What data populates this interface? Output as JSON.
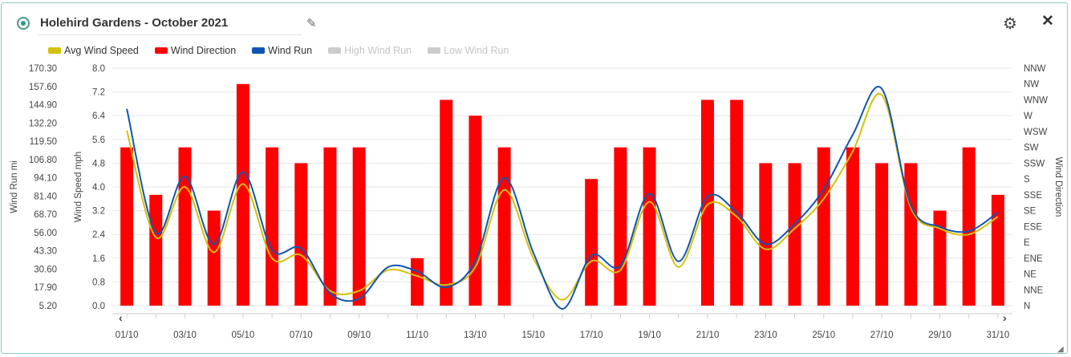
{
  "header": {
    "title": "Holehird Gardens - October 2021",
    "edit_icon": "pencil-icon",
    "settings_icon": "gear-icon",
    "close_icon": "close-icon"
  },
  "legend": [
    {
      "label": "Avg Wind Speed",
      "color": "#d4c10c",
      "active": true
    },
    {
      "label": "Wind Direction",
      "color": "#ff0000",
      "active": true
    },
    {
      "label": "Wind Run",
      "color": "#1155b0",
      "active": true
    },
    {
      "label": "High Wind Run",
      "color": "#cccccc",
      "active": false
    },
    {
      "label": "Low Wind Run",
      "color": "#cccccc",
      "active": false
    }
  ],
  "chart_data": {
    "type": "bar+line",
    "y_left_outer_label": "Wind Run mi",
    "y_left_inner_label": "Wind Speed mph",
    "y_right_label": "Wind Direction",
    "wind_run_ticks": [
      "170.30",
      "157.60",
      "144.90",
      "132.20",
      "119.50",
      "106.80",
      "94.10",
      "81.40",
      "68.70",
      "56.00",
      "43.30",
      "30.60",
      "17.90",
      "5.20"
    ],
    "wind_speed_ticks": [
      "8.0",
      "7.2",
      "6.4",
      "5.6",
      "4.8",
      "4.0",
      "3.2",
      "2.4",
      "1.6",
      "0.8",
      "0.0"
    ],
    "direction_ticks": [
      "NNW",
      "NW",
      "WNW",
      "W",
      "WSW",
      "SW",
      "SSW",
      "S",
      "SSE",
      "SE",
      "ESE",
      "E",
      "ENE",
      "NE",
      "NNE",
      "N"
    ],
    "x_tick_labels": [
      "01/10",
      "03/10",
      "05/10",
      "07/10",
      "09/10",
      "11/10",
      "13/10",
      "15/10",
      "17/10",
      "19/10",
      "21/10",
      "23/10",
      "25/10",
      "27/10",
      "29/10",
      "31/10"
    ],
    "days": [
      1,
      2,
      3,
      4,
      5,
      6,
      7,
      8,
      9,
      10,
      11,
      12,
      13,
      14,
      15,
      16,
      17,
      18,
      19,
      20,
      21,
      22,
      23,
      24,
      25,
      26,
      27,
      28,
      29,
      30,
      31
    ],
    "series": [
      {
        "name": "Wind Direction",
        "type": "bar",
        "unit": "direction index (N=0 … NNW=15)",
        "values": [
          10,
          7,
          10,
          6,
          14,
          10,
          9,
          10,
          10,
          null,
          3,
          13,
          12,
          10,
          null,
          null,
          8,
          10,
          10,
          null,
          13,
          13,
          9,
          9,
          10,
          10,
          9,
          9,
          6,
          10,
          7
        ]
      },
      {
        "name": "Avg Wind Speed",
        "type": "line",
        "unit": "mph",
        "values": [
          5.9,
          2.3,
          4.0,
          1.8,
          4.1,
          1.6,
          1.7,
          0.5,
          0.5,
          1.2,
          1.0,
          0.7,
          1.3,
          3.9,
          1.6,
          0.2,
          1.5,
          1.2,
          3.5,
          1.3,
          3.4,
          3.0,
          1.9,
          2.6,
          3.6,
          5.2,
          7.1,
          3.3,
          2.6,
          2.4,
          3.0
        ]
      },
      {
        "name": "Wind Run",
        "type": "line",
        "unit": "mi",
        "values": [
          142,
          56,
          95,
          48,
          98,
          44,
          45,
          14,
          10,
          32,
          29,
          18,
          36,
          94,
          42,
          3,
          40,
          33,
          83,
          36,
          81,
          70,
          48,
          62,
          86,
          124,
          156,
          75,
          60,
          57,
          70
        ]
      }
    ],
    "speed_ylim": [
      0,
      8
    ],
    "run_ylim": [
      5.2,
      170.3
    ],
    "grid": true
  }
}
